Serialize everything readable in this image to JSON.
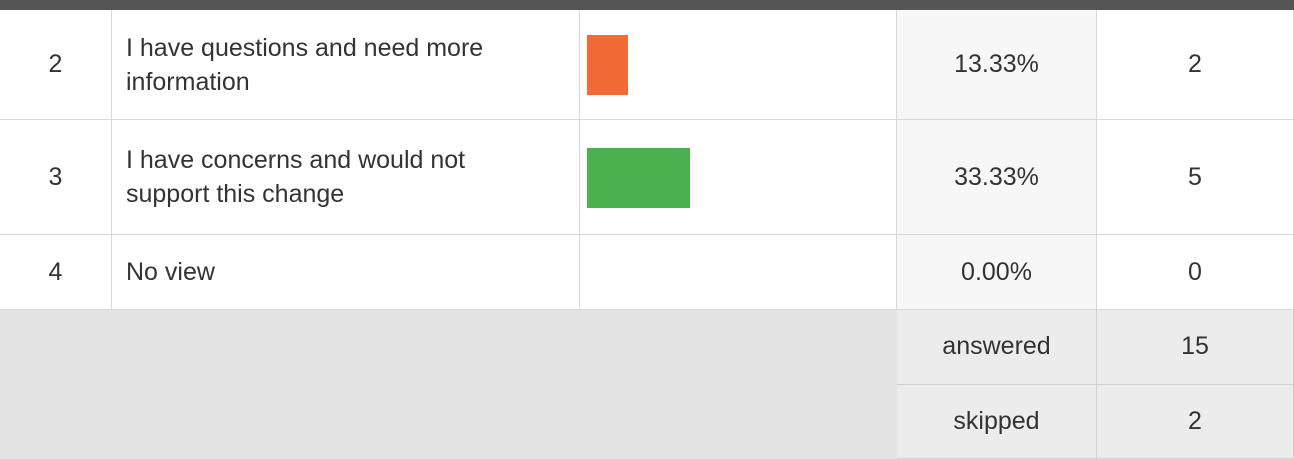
{
  "table": {
    "rows": [
      {
        "number": 2,
        "choice": "I have questions and need more information",
        "color": "#f26b37",
        "percent": 13.33,
        "percent_label": "13.33%",
        "count": 2
      },
      {
        "number": 3,
        "choice": "I have concerns and would not support this change",
        "color": "#4caf50",
        "percent": 33.33,
        "percent_label": "33.33%",
        "count": 5
      },
      {
        "number": 4,
        "choice": "No view",
        "color": "#4caf50",
        "percent": 0,
        "percent_label": "0.00%",
        "count": 0
      }
    ],
    "summary": [
      {
        "label": "answered",
        "value": 15
      },
      {
        "label": "skipped",
        "value": 2
      }
    ]
  }
}
